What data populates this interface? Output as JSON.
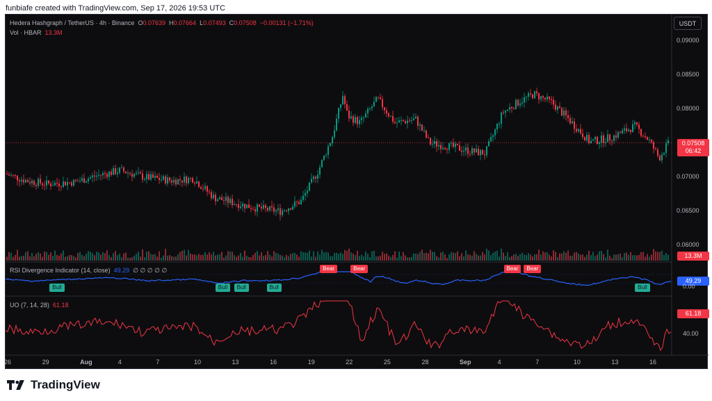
{
  "caption": "funbiafe created with TradingView.com, Sep 17, 2026 19:53 UTC",
  "currency_button": "USDT",
  "symbol": {
    "name": "Hedera Hashgraph / TetherUS · 4h · Binance",
    "open_label": "O",
    "open": "0.07639",
    "high_label": "H",
    "high": "0.07664",
    "low_label": "L",
    "low": "0.07493",
    "close_label": "C",
    "close": "0.07508",
    "change": "−0.00131 (−1.71%)"
  },
  "volume": {
    "label": "Vol · HBAR",
    "value": "13.3M"
  },
  "price_axis": [
    "0.09000",
    "0.08500",
    "0.08000",
    "0.07000",
    "0.06500",
    "0.06000"
  ],
  "price_tag": {
    "value": "0.07508",
    "countdown": "06:42"
  },
  "volume_tag": "13.3M",
  "rsi": {
    "label": "RSI Divergence Indicator (14, close)",
    "value": "49.29",
    "na": "∅ ∅ ∅ ∅ ∅",
    "axis_value": "0.00",
    "tag_value": "49.29",
    "signals": [
      {
        "text": "Bull",
        "type": "bull",
        "x": 0.066
      },
      {
        "text": "Bull",
        "type": "bull",
        "x": 0.315
      },
      {
        "text": "Bull",
        "type": "bull",
        "x": 0.343
      },
      {
        "text": "Bull",
        "type": "bull",
        "x": 0.392
      },
      {
        "text": "Bear",
        "type": "bear",
        "x": 0.472
      },
      {
        "text": "Bear",
        "type": "bear",
        "x": 0.518
      },
      {
        "text": "Bear",
        "type": "bear",
        "x": 0.748
      },
      {
        "text": "Bear",
        "type": "bear",
        "x": 0.778
      },
      {
        "text": "Bull",
        "type": "bull",
        "x": 0.945
      }
    ]
  },
  "uo": {
    "label": "UO (7, 14, 28)",
    "value": "61.18",
    "axis_value": "40.00",
    "tag_value": "61.18"
  },
  "time_axis": [
    "26",
    "29",
    "Aug",
    "4",
    "7",
    "10",
    "13",
    "16",
    "19",
    "22",
    "25",
    "28",
    "Sep",
    "4",
    "7",
    "10",
    "13",
    "16"
  ],
  "brand": "TradingView",
  "colors": {
    "up": "#089981",
    "down": "#f23645",
    "rsi": "#2962ff",
    "uo": "#f23645",
    "panel": "#0d0d0f"
  }
}
